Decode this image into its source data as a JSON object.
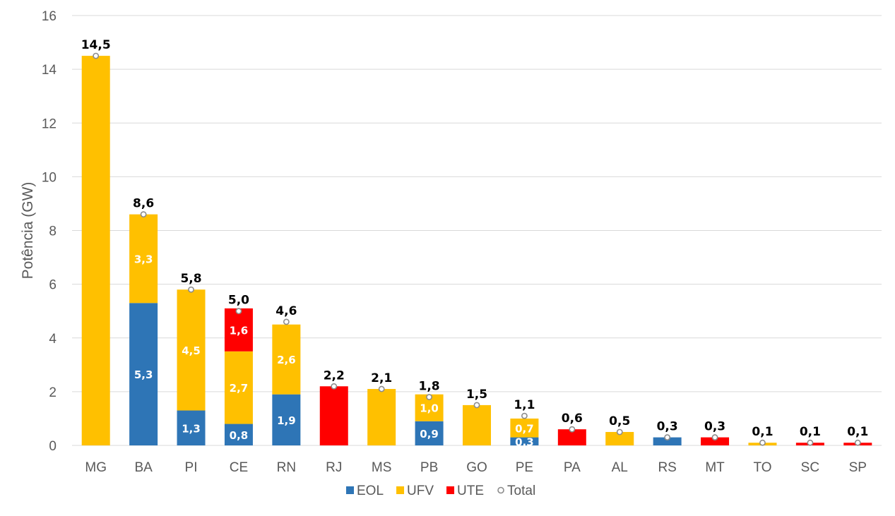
{
  "chart_data": {
    "type": "bar",
    "stacked": true,
    "ylabel": "Potência (GW)",
    "ylim": [
      0,
      16
    ],
    "yticks": [
      0,
      2,
      4,
      6,
      8,
      10,
      12,
      14,
      16
    ],
    "grid": true,
    "legend_position": "bottom",
    "categories": [
      "MG",
      "BA",
      "PI",
      "CE",
      "RN",
      "RJ",
      "MS",
      "PB",
      "GO",
      "PE",
      "PA",
      "AL",
      "RS",
      "MT",
      "TO",
      "SC",
      "SP"
    ],
    "series": [
      {
        "name": "EOL",
        "color": "#2e75b6",
        "values": [
          0,
          5.3,
          1.3,
          0.8,
          1.9,
          0,
          0,
          0.9,
          0,
          0.3,
          0,
          0,
          0.3,
          0,
          0,
          0,
          0
        ]
      },
      {
        "name": "UFV",
        "color": "#ffc000",
        "values": [
          14.5,
          3.3,
          4.5,
          2.7,
          2.6,
          0,
          2.1,
          1.0,
          1.5,
          0.7,
          0,
          0.5,
          0,
          0,
          0.1,
          0,
          0
        ]
      },
      {
        "name": "UTE",
        "color": "#ff0000",
        "values": [
          0,
          0,
          0,
          1.6,
          0,
          2.2,
          0,
          0,
          0,
          0,
          0.6,
          0,
          0,
          0.3,
          0,
          0.1,
          0.1
        ]
      }
    ],
    "segment_labels": {
      "EOL": [
        "",
        "5,3",
        "1,3",
        "0,8",
        "1,9",
        "",
        "",
        "0,9",
        "",
        "0,3",
        "",
        "",
        "",
        "",
        "",
        "",
        ""
      ],
      "UFV": [
        "",
        "3,3",
        "4,5",
        "2,7",
        "2,6",
        "",
        "",
        "1,0",
        "",
        "0,7",
        "",
        "",
        "",
        "",
        "",
        "",
        ""
      ],
      "UTE": [
        "",
        "",
        "",
        "1,6",
        "",
        "",
        "",
        "",
        "",
        "",
        "",
        "",
        "",
        "",
        "",
        "",
        ""
      ]
    },
    "total": {
      "name": "Total",
      "values": [
        14.5,
        8.6,
        5.8,
        5.0,
        4.6,
        2.2,
        2.1,
        1.8,
        1.5,
        1.1,
        0.6,
        0.5,
        0.3,
        0.3,
        0.1,
        0.1,
        0.1
      ],
      "labels": [
        "14,5",
        "8,6",
        "5,8",
        "5,0",
        "4,6",
        "2,2",
        "2,1",
        "1,8",
        "1,5",
        "1,1",
        "0,6",
        "0,5",
        "0,3",
        "0,3",
        "0,1",
        "0,1",
        "0,1"
      ]
    }
  }
}
